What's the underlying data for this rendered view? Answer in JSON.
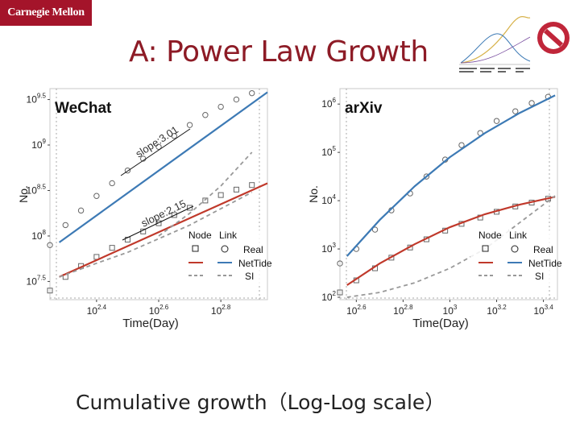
{
  "header": {
    "logo_text": "Carnegie Mellon",
    "title": "A: Power Law Growth",
    "brand_color": "#a4142a",
    "title_color": "#8d1b26"
  },
  "caption": "Cumulative growth（Log-Log scale）",
  "legend": {
    "node_header": "Node",
    "link_header": "Link",
    "real": "Real",
    "nettide": "NetTide",
    "si": "SI"
  },
  "colors": {
    "node": "#c0392b",
    "link": "#3d7ab5",
    "si": "#999999",
    "marker": "#666666"
  },
  "icons": {
    "no_sign": "no-sign-icon",
    "thumbnail": "mini-chart-thumbnail"
  },
  "chart_data": [
    {
      "type": "scatter",
      "title": "WeChat",
      "xlabel": "Time(Day)",
      "ylabel": "No.",
      "xscale": "log10",
      "yscale": "log10",
      "xlim_log10": [
        2.25,
        2.95
      ],
      "ylim_log10": [
        7.3,
        9.62
      ],
      "x_ticks": [
        {
          "base": "10",
          "exp": "2.4",
          "v": 2.4
        },
        {
          "base": "10",
          "exp": "2.6",
          "v": 2.6
        },
        {
          "base": "10",
          "exp": "2.8",
          "v": 2.8
        }
      ],
      "y_ticks": [
        {
          "base": "10",
          "exp": "7.5",
          "v": 7.5
        },
        {
          "base": "10",
          "exp": "8",
          "v": 8.0
        },
        {
          "base": "10",
          "exp": "8.5",
          "v": 8.5
        },
        {
          "base": "10",
          "exp": "9",
          "v": 9.0
        },
        {
          "base": "10",
          "exp": "9.5",
          "v": 9.5
        }
      ],
      "annotations": [
        {
          "text": "slope:3.01",
          "attached_series": "link"
        },
        {
          "text": "slope:2.15",
          "attached_series": "node"
        }
      ],
      "series": [
        {
          "name": "Real",
          "role": "link-real",
          "x": [
            2.25,
            2.3,
            2.35,
            2.4,
            2.45,
            2.5,
            2.55,
            2.6,
            2.65,
            2.7,
            2.75,
            2.8,
            2.85,
            2.9
          ],
          "y": [
            7.9,
            8.12,
            8.28,
            8.44,
            8.58,
            8.72,
            8.85,
            8.98,
            9.1,
            9.22,
            9.33,
            9.42,
            9.5,
            9.57
          ]
        },
        {
          "name": "NetTide",
          "role": "link-fit",
          "x": [
            2.28,
            2.95
          ],
          "y": [
            7.93,
            9.58
          ]
        },
        {
          "name": "Real",
          "role": "node-real",
          "x": [
            2.25,
            2.3,
            2.35,
            2.4,
            2.45,
            2.5,
            2.55,
            2.6,
            2.65,
            2.7,
            2.75,
            2.8,
            2.85,
            2.9
          ],
          "y": [
            7.4,
            7.55,
            7.67,
            7.77,
            7.87,
            7.96,
            8.05,
            8.14,
            8.23,
            8.31,
            8.39,
            8.45,
            8.51,
            8.56
          ]
        },
        {
          "name": "NetTide",
          "role": "node-fit",
          "x": [
            2.28,
            2.95
          ],
          "y": [
            7.55,
            8.58
          ]
        },
        {
          "name": "SI",
          "role": "node-si",
          "x": [
            2.28,
            2.4,
            2.5,
            2.6,
            2.7,
            2.8,
            2.9
          ],
          "y": [
            7.55,
            7.7,
            7.82,
            7.97,
            8.12,
            8.3,
            8.48
          ]
        },
        {
          "name": "SI",
          "role": "link-si",
          "x": [
            2.6,
            2.7,
            2.8,
            2.9
          ],
          "y": [
            8.0,
            8.25,
            8.55,
            8.92
          ]
        }
      ]
    },
    {
      "type": "scatter",
      "title": "arXiv",
      "xlabel": "Time(Day)",
      "ylabel": "No.",
      "xscale": "log10",
      "yscale": "log10",
      "xlim_log10": [
        2.53,
        3.46
      ],
      "ylim_log10": [
        1.95,
        6.32
      ],
      "x_ticks": [
        {
          "base": "10",
          "exp": "2.6",
          "v": 2.6
        },
        {
          "base": "10",
          "exp": "2.8",
          "v": 2.8
        },
        {
          "base": "10",
          "exp": "3",
          "v": 3.0
        },
        {
          "base": "10",
          "exp": "3.2",
          "v": 3.2
        },
        {
          "base": "10",
          "exp": "3.4",
          "v": 3.4
        }
      ],
      "y_ticks": [
        {
          "base": "10",
          "exp": "2",
          "v": 2
        },
        {
          "base": "10",
          "exp": "3",
          "v": 3
        },
        {
          "base": "10",
          "exp": "4",
          "v": 4
        },
        {
          "base": "10",
          "exp": "5",
          "v": 5
        },
        {
          "base": "10",
          "exp": "6",
          "v": 6
        }
      ],
      "series": [
        {
          "name": "Real",
          "role": "link-real",
          "x": [
            2.53,
            2.6,
            2.68,
            2.75,
            2.83,
            2.9,
            2.98,
            3.05,
            3.13,
            3.2,
            3.28,
            3.35,
            3.42
          ],
          "y": [
            2.7,
            3.0,
            3.4,
            3.8,
            4.15,
            4.5,
            4.85,
            5.15,
            5.4,
            5.65,
            5.85,
            6.02,
            6.15
          ]
        },
        {
          "name": "NetTide",
          "role": "link-fit",
          "x": [
            2.56,
            2.7,
            2.85,
            3.0,
            3.15,
            3.3,
            3.45
          ],
          "y": [
            2.85,
            3.6,
            4.3,
            4.9,
            5.4,
            5.82,
            6.18
          ]
        },
        {
          "name": "Real",
          "role": "node-real",
          "x": [
            2.53,
            2.6,
            2.68,
            2.75,
            2.83,
            2.9,
            2.98,
            3.05,
            3.13,
            3.2,
            3.28,
            3.35,
            3.42
          ],
          "y": [
            2.1,
            2.35,
            2.6,
            2.82,
            3.03,
            3.2,
            3.38,
            3.52,
            3.65,
            3.77,
            3.88,
            3.96,
            4.04
          ]
        },
        {
          "name": "NetTide",
          "role": "node-fit",
          "x": [
            2.56,
            2.7,
            2.85,
            3.0,
            3.15,
            3.3,
            3.45
          ],
          "y": [
            2.25,
            2.7,
            3.1,
            3.45,
            3.72,
            3.92,
            4.08
          ]
        },
        {
          "name": "SI",
          "role": "node-si",
          "x": [
            2.56,
            2.7,
            2.85,
            3.0,
            3.15,
            3.3,
            3.45
          ],
          "y": [
            2.0,
            2.1,
            2.3,
            2.6,
            3.0,
            3.55,
            4.1
          ]
        }
      ]
    }
  ]
}
